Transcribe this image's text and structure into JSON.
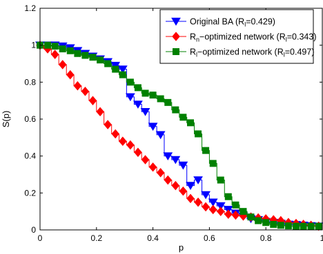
{
  "chart_data": {
    "type": "line",
    "xlabel": "p",
    "ylabel": "S(p)",
    "xlim": [
      0,
      1
    ],
    "ylim": [
      0,
      1.2
    ],
    "xticks": [
      "0",
      "0.2",
      "0.4",
      "0.6",
      "0.8",
      "1"
    ],
    "yticks": [
      "0",
      "0.2",
      "0.4",
      "0.6",
      "0.8",
      "1",
      "1.2"
    ],
    "grid": false,
    "legend_position": "top-right",
    "series": [
      {
        "name": "Original BA (R_l=0.429)",
        "legend": {
          "main": "Original BA (R",
          "sub": "l",
          "tail": "=0.429)"
        },
        "color": "#0000ff",
        "marker": "triangle-down",
        "x": [
          0,
          0.027,
          0.053,
          0.08,
          0.107,
          0.133,
          0.16,
          0.187,
          0.213,
          0.24,
          0.267,
          0.293,
          0.32,
          0.347,
          0.373,
          0.4,
          0.427,
          0.453,
          0.48,
          0.507,
          0.533,
          0.56,
          0.587,
          0.613,
          0.64,
          0.667,
          0.693,
          0.72,
          0.747,
          0.773,
          0.8,
          0.827,
          0.853,
          0.88,
          0.907,
          0.933,
          0.96,
          0.987
        ],
        "y": [
          1.0,
          1.0,
          1.0,
          0.995,
          0.985,
          0.97,
          0.955,
          0.94,
          0.925,
          0.91,
          0.89,
          0.87,
          0.72,
          0.68,
          0.64,
          0.56,
          0.515,
          0.4,
          0.38,
          0.35,
          0.24,
          0.27,
          0.19,
          0.15,
          0.13,
          0.11,
          0.09,
          0.075,
          0.06,
          0.055,
          0.045,
          0.04,
          0.035,
          0.03,
          0.028,
          0.025,
          0.022,
          0.02
        ]
      },
      {
        "name": "R_n-optimized network (R_l=0.343)",
        "legend": {
          "main": "R",
          "sub": "n",
          "mid": "−optimized network (R",
          "sub2": "l",
          "tail": "=0.343)"
        },
        "color": "#ff0000",
        "marker": "diamond",
        "x": [
          0,
          0.027,
          0.053,
          0.08,
          0.107,
          0.133,
          0.16,
          0.187,
          0.213,
          0.24,
          0.267,
          0.293,
          0.32,
          0.347,
          0.373,
          0.4,
          0.427,
          0.453,
          0.48,
          0.507,
          0.533,
          0.56,
          0.587,
          0.613,
          0.64,
          0.667,
          0.693,
          0.72,
          0.747,
          0.773,
          0.8,
          0.827,
          0.853,
          0.88,
          0.907,
          0.933,
          0.96,
          0.987
        ],
        "y": [
          1.0,
          0.98,
          0.95,
          0.895,
          0.84,
          0.78,
          0.75,
          0.7,
          0.64,
          0.57,
          0.52,
          0.48,
          0.46,
          0.42,
          0.38,
          0.34,
          0.31,
          0.27,
          0.24,
          0.21,
          0.17,
          0.15,
          0.125,
          0.11,
          0.1,
          0.085,
          0.08,
          0.075,
          0.07,
          0.065,
          0.06,
          0.055,
          0.05,
          0.04,
          0.035,
          0.03,
          0.025,
          0.02
        ]
      },
      {
        "name": "R_l-optimized network (R_l=0.497)",
        "legend": {
          "main": "R",
          "sub": "l",
          "mid": "−optimized network (R",
          "sub2": "l",
          "tail": "=0.497)"
        },
        "color": "#008000",
        "marker": "square",
        "x": [
          0,
          0.027,
          0.053,
          0.08,
          0.107,
          0.133,
          0.16,
          0.187,
          0.213,
          0.24,
          0.267,
          0.293,
          0.32,
          0.347,
          0.373,
          0.4,
          0.427,
          0.453,
          0.48,
          0.507,
          0.533,
          0.56,
          0.587,
          0.613,
          0.64,
          0.667,
          0.693,
          0.72,
          0.747,
          0.773,
          0.8,
          0.827,
          0.853,
          0.88,
          0.907,
          0.933,
          0.96,
          0.987
        ],
        "y": [
          1.0,
          1.0,
          0.995,
          0.98,
          0.97,
          0.955,
          0.945,
          0.935,
          0.92,
          0.9,
          0.87,
          0.84,
          0.8,
          0.77,
          0.74,
          0.73,
          0.71,
          0.69,
          0.65,
          0.61,
          0.58,
          0.52,
          0.43,
          0.36,
          0.27,
          0.18,
          0.135,
          0.1,
          0.07,
          0.05,
          0.04,
          0.03,
          0.025,
          0.022,
          0.02,
          0.02,
          0.02,
          0.02
        ]
      }
    ]
  }
}
